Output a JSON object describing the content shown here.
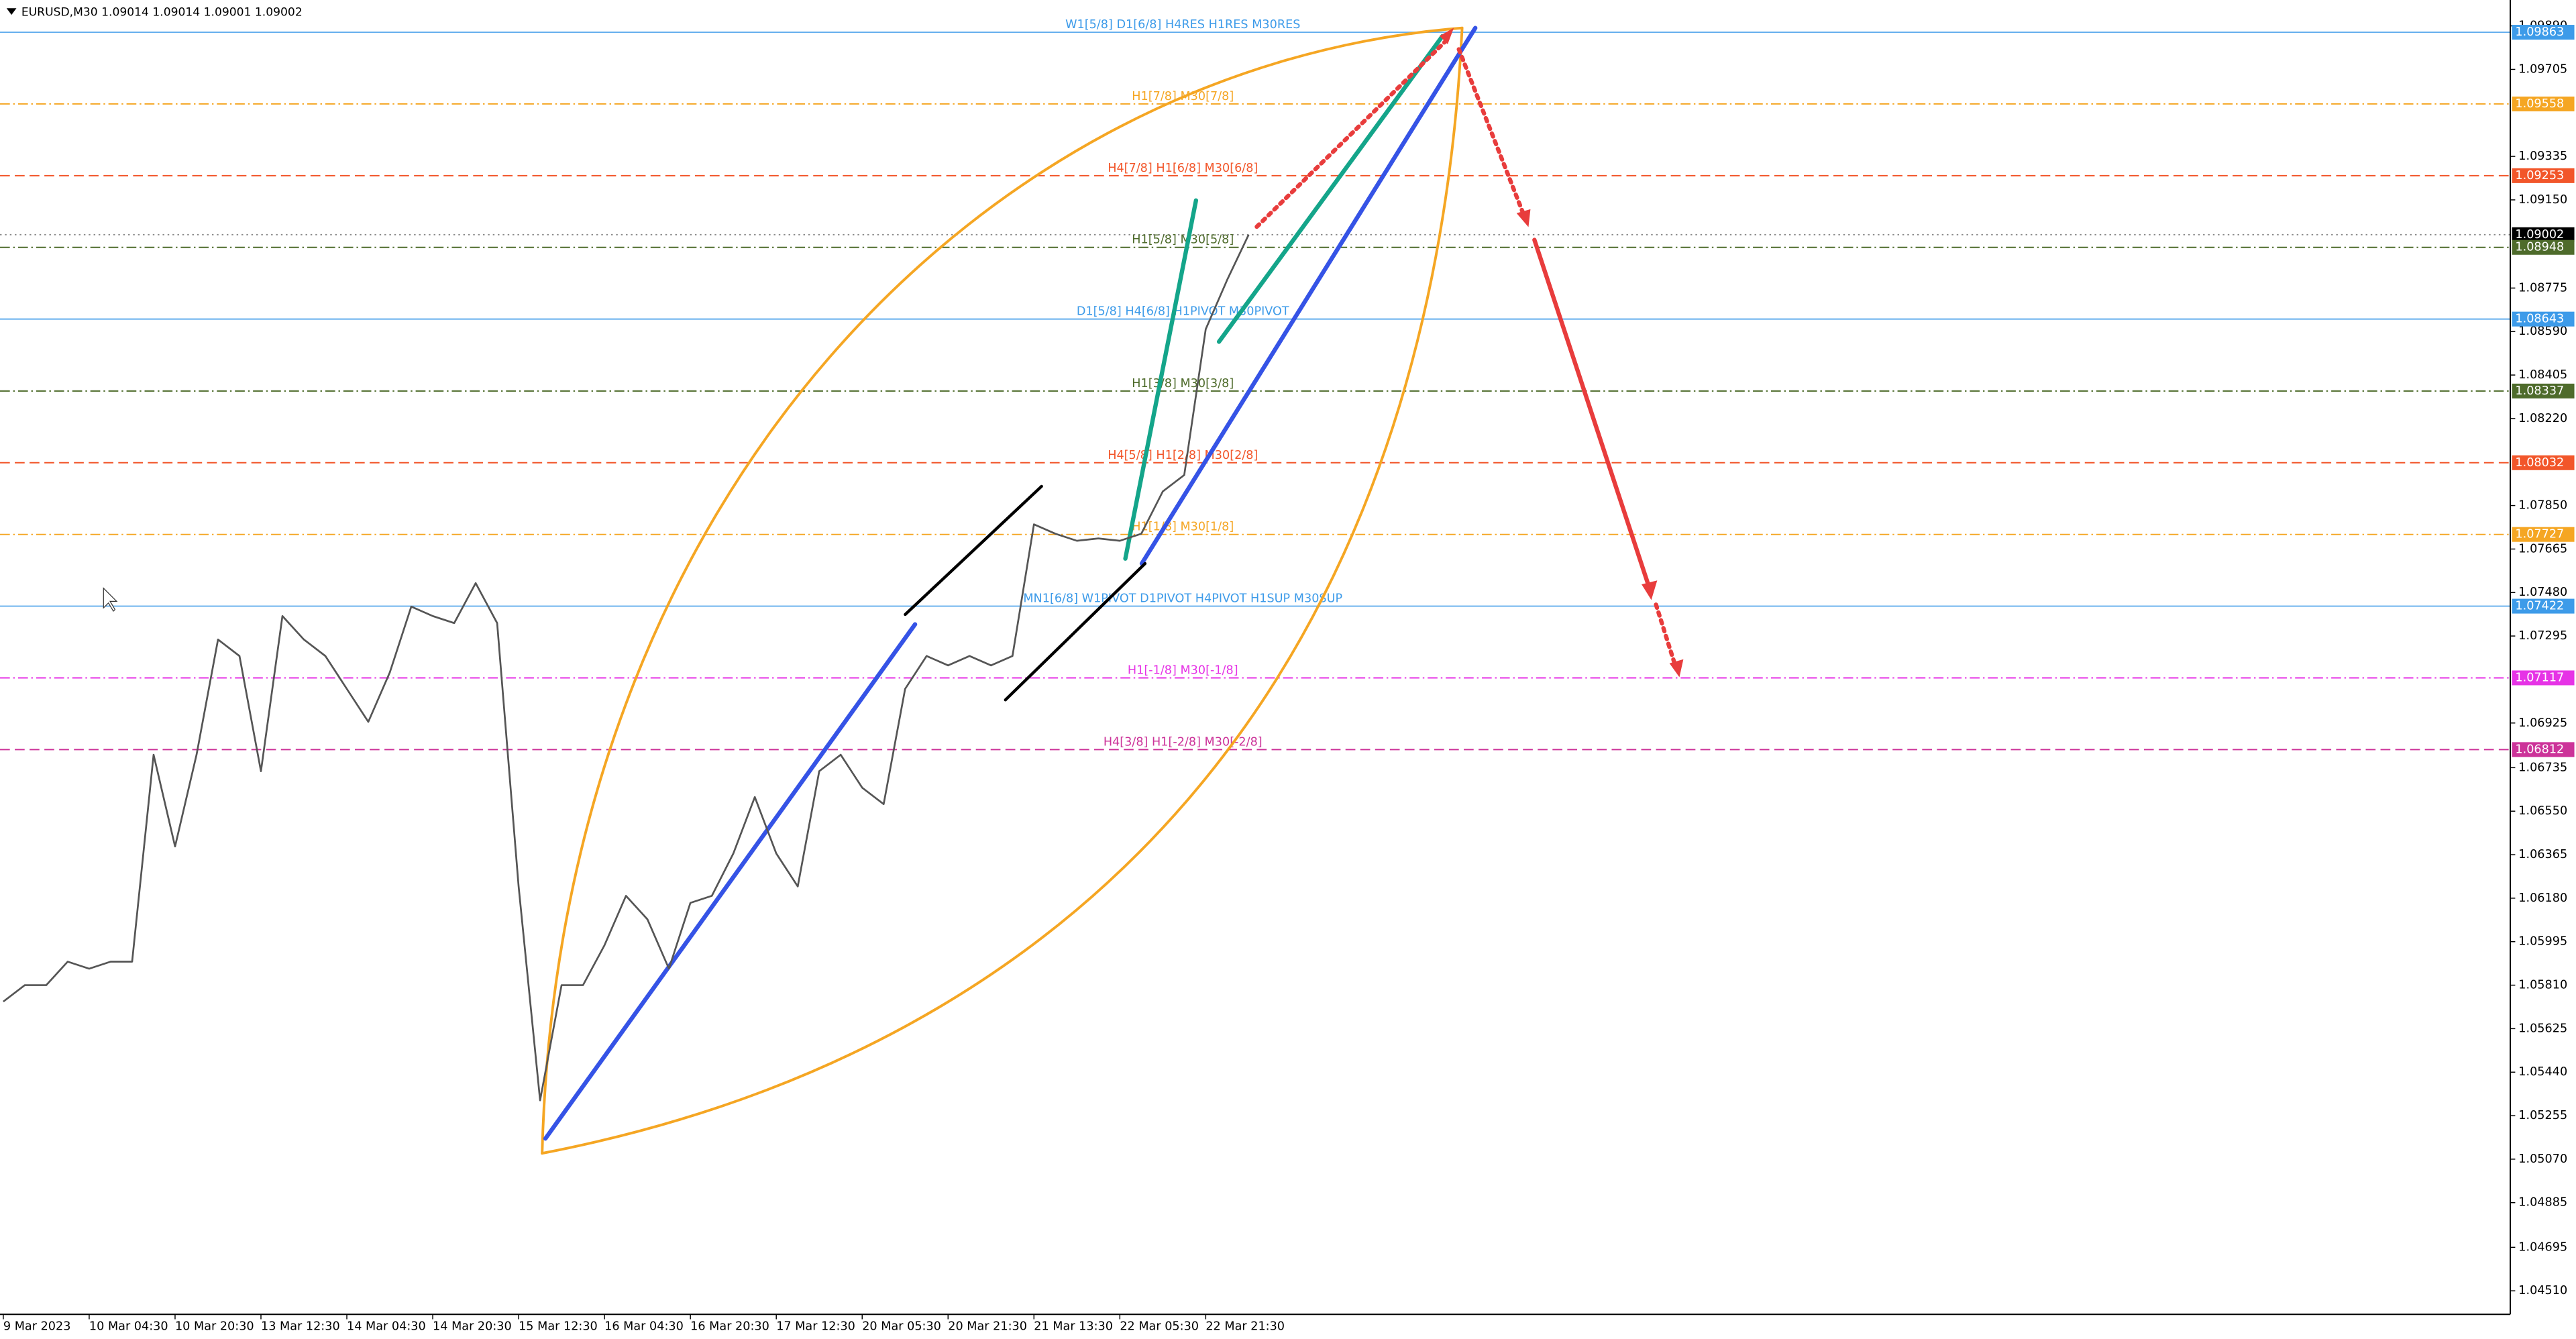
{
  "chart_data": {
    "type": "line",
    "title": "EURUSD,M30  1.09014 1.09014 1.09001 1.09002",
    "color": "#555555",
    "categories": [
      "9 Mar 2023",
      null,
      null,
      null,
      "10 Mar 04:30",
      null,
      null,
      null,
      "10 Mar 20:30",
      null,
      null,
      null,
      "13 Mar 12:30",
      null,
      null,
      null,
      "14 Mar 04:30",
      null,
      null,
      null,
      "14 Mar 20:30",
      null,
      null,
      null,
      "15 Mar 12:30",
      null,
      null,
      null,
      "16 Mar 04:30",
      null,
      null,
      null,
      "16 Mar 20:30",
      null,
      null,
      null,
      "17 Mar 12:30",
      null,
      null,
      null,
      "20 Mar 05:30",
      null,
      null,
      null,
      "20 Mar 21:30",
      null,
      null,
      null,
      "21 Mar 13:30",
      null,
      null,
      null,
      "22 Mar 05:30",
      null,
      null,
      null,
      "22 Mar 21:30",
      null,
      null
    ],
    "values": [
      1.0574,
      1.0581,
      1.0581,
      1.0591,
      1.0588,
      1.0591,
      1.0591,
      1.0679,
      1.064,
      1.0679,
      1.0728,
      1.0721,
      1.0672,
      1.0738,
      1.0728,
      1.0721,
      1.0707,
      1.0693,
      1.0714,
      1.0742,
      1.0738,
      1.0735,
      1.0752,
      1.0735,
      1.0623,
      1.0532,
      1.0581,
      1.0581,
      1.0598,
      1.0619,
      1.0609,
      1.0588,
      1.0616,
      1.0619,
      1.0637,
      1.0661,
      1.0637,
      1.0623,
      1.0672,
      1.0679,
      1.0665,
      1.0658,
      1.0707,
      1.0721,
      1.0717,
      1.0721,
      1.0717,
      1.0721,
      1.0777,
      1.0773,
      1.077,
      1.0771,
      1.077,
      1.0773,
      1.0791,
      1.0798,
      1.086,
      1.0881,
      1.09002
    ],
    "ylim": [
      1.0441,
      1.1
    ],
    "yticks": [
      {
        "value": 1.0989,
        "label": "1.09890"
      },
      1.09705,
      1.09335,
      {
        "value": 1.0915,
        "label": "1.09150"
      },
      1.08775,
      {
        "value": 1.0859,
        "label": "1.08590"
      },
      1.08405,
      {
        "value": 1.0822,
        "label": "1.08220"
      },
      {
        "value": 1.0785,
        "label": "1.07850"
      },
      1.07665,
      {
        "value": 1.0748,
        "label": "1.07480"
      },
      1.07295,
      1.06925,
      1.06735,
      {
        "value": 1.0655,
        "label": "1.06550"
      },
      1.06365,
      {
        "value": 1.0618,
        "label": "1.06180"
      },
      1.05995,
      {
        "value": 1.0581,
        "label": "1.05810"
      },
      1.05625,
      {
        "value": 1.0544,
        "label": "1.05440"
      },
      1.05255,
      {
        "value": 1.0507,
        "label": "1.05070"
      },
      1.04885,
      1.04695,
      {
        "value": 1.0451,
        "label": "1.04510"
      }
    ],
    "levels": [
      {
        "price": 1.09863,
        "text": "W1[5/8] D1[6/8] H4RES H1RES M30RES",
        "color": "#3d9be9",
        "style": "solid"
      },
      {
        "price": 1.09558,
        "text": "H1[7/8] M30[7/8]",
        "color": "#f5a623",
        "style": "dashdot"
      },
      {
        "price": 1.09253,
        "text": "H4[7/8] H1[6/8] M30[6/8]",
        "color": "#f2562a",
        "style": "dash"
      },
      {
        "price": 1.09002,
        "color": "#000000",
        "style": "dot"
      },
      {
        "price": 1.08948,
        "text": "H1[5/8] M30[5/8]",
        "color": "#4e6b2b",
        "style": "dashdot"
      },
      {
        "price": 1.08643,
        "text": "D1[5/8] H4[6/8] H1PIVOT M30PIVOT",
        "color": "#3d9be9",
        "style": "solid"
      },
      {
        "price": 1.08337,
        "text": "H1[3/8] M30[3/8]",
        "color": "#4e6b2b",
        "style": "dashdot"
      },
      {
        "price": 1.08032,
        "text": "H4[5/8] H1[2/8] M30[2/8]",
        "color": "#f2562a",
        "style": "dash"
      },
      {
        "price": 1.07727,
        "text": "H1[1/8] M30[1/8]",
        "color": "#f5a623",
        "style": "dashdot"
      },
      {
        "price": 1.07422,
        "text": "MN1[6/8] W1PIVOT D1PIVOT H4PIVOT H1SUP M30SUP",
        "color": "#3d9be9",
        "style": "solid"
      },
      {
        "price": 1.07117,
        "text": "H1[-1/8] M30[-1/8]",
        "color": "#e633e6",
        "style": "dashdot"
      },
      {
        "price": 1.06812,
        "text": "H4[3/8] H1[-2/8] M30[-2/8]",
        "color": "#cc3399",
        "style": "dash"
      }
    ]
  }
}
